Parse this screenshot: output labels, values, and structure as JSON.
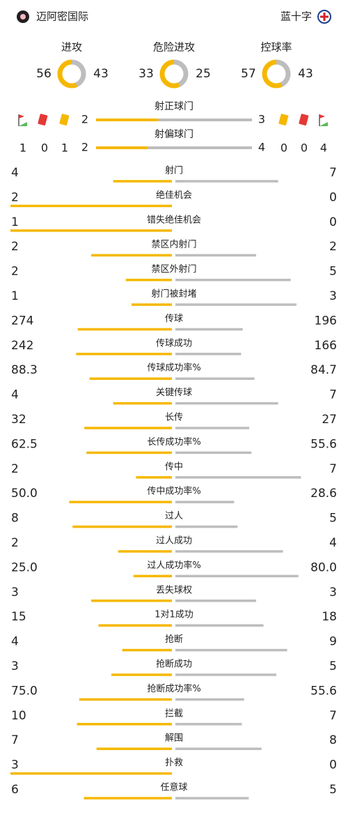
{
  "header": {
    "home": "迈阿密国际",
    "away": "蓝十字"
  },
  "rings": [
    {
      "label": "进攻",
      "home": 56,
      "away": 43
    },
    {
      "label": "危险进攻",
      "home": 33,
      "away": 25
    },
    {
      "label": "控球率",
      "home": 57,
      "away": 43
    }
  ],
  "shots": [
    {
      "label": "射正球门",
      "home": 2,
      "away": 3
    },
    {
      "label": "射偏球门",
      "home": 2,
      "away": 4
    }
  ],
  "home_cards": {
    "corners": 1,
    "red": 0,
    "yellow": 1
  },
  "away_cards": {
    "yellow": 0,
    "red": 0,
    "corners": 4
  },
  "stats": [
    {
      "label": "射门",
      "home": 4,
      "away": 7
    },
    {
      "label": "绝佳机会",
      "home": 2,
      "away": 0
    },
    {
      "label": "错失绝佳机会",
      "home": 1,
      "away": 0
    },
    {
      "label": "禁区内射门",
      "home": 2,
      "away": 2
    },
    {
      "label": "禁区外射门",
      "home": 2,
      "away": 5
    },
    {
      "label": "射门被封堵",
      "home": 1,
      "away": 3
    },
    {
      "label": "传球",
      "home": 274,
      "away": 196
    },
    {
      "label": "传球成功",
      "home": 242,
      "away": 166
    },
    {
      "label": "传球成功率%",
      "home": 88.3,
      "away": 84.7
    },
    {
      "label": "关键传球",
      "home": 4,
      "away": 7
    },
    {
      "label": "长传",
      "home": 32,
      "away": 27
    },
    {
      "label": "长传成功率%",
      "home": 62.5,
      "away": 55.6
    },
    {
      "label": "传中",
      "home": 2,
      "away": 7
    },
    {
      "label": "传中成功率%",
      "home": 50,
      "home_label": "50.0",
      "away": 28.6
    },
    {
      "label": "过人",
      "home": 8,
      "away": 5
    },
    {
      "label": "过人成功",
      "home": 2,
      "away": 4
    },
    {
      "label": "过人成功率%",
      "home": 25,
      "home_label": "25.0",
      "away": 80,
      "away_label": "80.0"
    },
    {
      "label": "丢失球权",
      "home": 3,
      "away": 3
    },
    {
      "label": "1对1成功",
      "home": 15,
      "away": 18
    },
    {
      "label": "抢断",
      "home": 4,
      "away": 9
    },
    {
      "label": "抢断成功",
      "home": 3,
      "away": 5
    },
    {
      "label": "抢断成功率%",
      "home": 75,
      "home_label": "75.0",
      "away": 55.6
    },
    {
      "label": "拦截",
      "home": 10,
      "away": 7
    },
    {
      "label": "解围",
      "home": 7,
      "away": 8
    },
    {
      "label": "扑救",
      "home": 3,
      "away": 0
    },
    {
      "label": "任意球",
      "home": 6,
      "away": 5
    }
  ]
}
